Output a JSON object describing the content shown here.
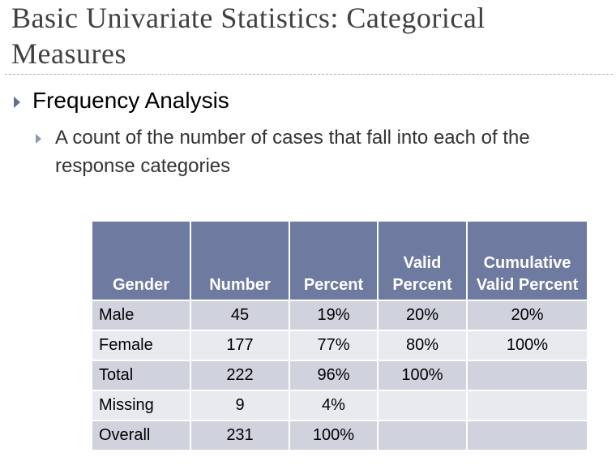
{
  "header": {
    "title": "Basic Univariate Statistics: Categorical Measures"
  },
  "bullets": [
    {
      "text": "Frequency Analysis",
      "sub": [
        "A count of the number of cases that fall into each of the response categories"
      ]
    }
  ],
  "table": {
    "columns": [
      "Gender",
      "Number",
      "Percent",
      "Valid Percent",
      "Cumulative Valid Percent"
    ],
    "rows": [
      [
        "Male",
        "45",
        "19%",
        "20%",
        "20%"
      ],
      [
        "Female",
        "177",
        "77%",
        "80%",
        "100%"
      ],
      [
        "Total",
        "222",
        "96%",
        "100%",
        null
      ],
      [
        "Missing",
        "9",
        "4%",
        null,
        null
      ],
      [
        "Overall",
        "231",
        "100%",
        null,
        null
      ]
    ]
  }
}
